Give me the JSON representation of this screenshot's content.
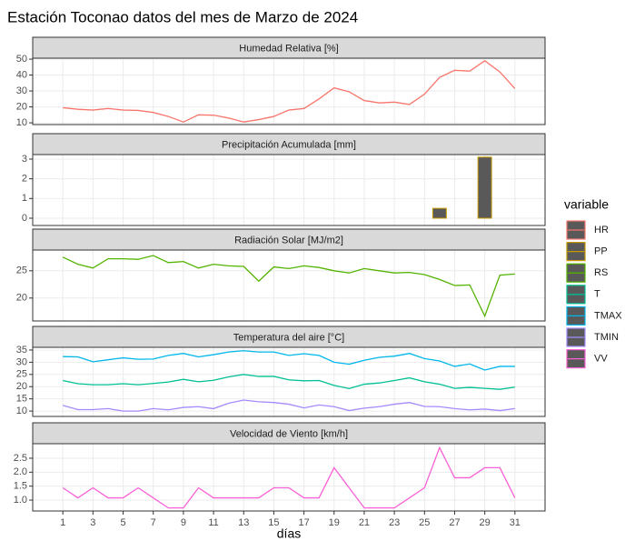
{
  "title": "Estación Toconao datos del mes de Marzo de 2024",
  "x_label": "días",
  "legend_title": "variable",
  "chart_data": [
    {
      "type": "line",
      "title": "Humedad Relativa [%]",
      "x": [
        1,
        2,
        3,
        4,
        5,
        6,
        7,
        8,
        9,
        10,
        11,
        12,
        13,
        14,
        15,
        16,
        17,
        18,
        19,
        20,
        21,
        22,
        23,
        24,
        25,
        26,
        27,
        28,
        29,
        30,
        31
      ],
      "xlim": [
        -1,
        33
      ],
      "xticks": [
        1,
        3,
        5,
        7,
        9,
        11,
        13,
        15,
        17,
        19,
        21,
        23,
        25,
        27,
        29,
        31
      ],
      "ylim": [
        8.9,
        50.6
      ],
      "yticks": [
        10,
        20,
        30,
        40,
        50
      ],
      "series": [
        {
          "name": "HR",
          "color": "#F8766D",
          "values": [
            19.5,
            18.5,
            18,
            19,
            18,
            17.8,
            16.5,
            14,
            10.5,
            15,
            14.8,
            13,
            10.5,
            12,
            14,
            18,
            19,
            25,
            32,
            29.5,
            24,
            22.5,
            23,
            21.5,
            28,
            38.5,
            43,
            42.5,
            49,
            42,
            31.5
          ]
        }
      ]
    },
    {
      "type": "bar",
      "title": "Precipitación Acumulada [mm]",
      "x": [
        1,
        2,
        3,
        4,
        5,
        6,
        7,
        8,
        9,
        10,
        11,
        12,
        13,
        14,
        15,
        16,
        17,
        18,
        19,
        20,
        21,
        22,
        23,
        24,
        25,
        26,
        27,
        28,
        29,
        30,
        31
      ],
      "xlim": [
        -1,
        33
      ],
      "xticks": [
        1,
        3,
        5,
        7,
        9,
        11,
        13,
        15,
        17,
        19,
        21,
        23,
        25,
        27,
        29,
        31
      ],
      "ylim": [
        -0.37,
        3.23
      ],
      "yticks": [
        0,
        1,
        2,
        3
      ],
      "series": [
        {
          "name": "PP",
          "color": "#C49A00",
          "values": [
            0,
            0,
            0,
            0,
            0,
            0,
            0,
            0,
            0,
            0,
            0,
            0,
            0,
            0,
            0,
            0,
            0,
            0,
            0,
            0,
            0,
            0,
            0,
            0,
            0,
            0.5,
            0,
            0,
            3.1,
            0,
            0
          ]
        }
      ]
    },
    {
      "type": "line",
      "title": "Radiación Solar [MJ/m2]",
      "x": [
        1,
        2,
        3,
        4,
        5,
        6,
        7,
        8,
        9,
        10,
        11,
        12,
        13,
        14,
        15,
        16,
        17,
        18,
        19,
        20,
        21,
        22,
        23,
        24,
        25,
        26,
        27,
        28,
        29,
        30,
        31
      ],
      "xlim": [
        -1,
        33
      ],
      "xticks": [
        1,
        3,
        5,
        7,
        9,
        11,
        13,
        15,
        17,
        19,
        21,
        23,
        25,
        27,
        29,
        31
      ],
      "ylim": [
        15.8,
        28.8
      ],
      "yticks": [
        20,
        25
      ],
      "series": [
        {
          "name": "RS",
          "color": "#53B400",
          "values": [
            27.5,
            26.2,
            25.5,
            27.2,
            27.2,
            27.1,
            27.8,
            26.5,
            26.7,
            25.5,
            26.2,
            25.9,
            25.8,
            23.1,
            25.7,
            25.4,
            25.9,
            25.6,
            25,
            24.6,
            25.4,
            25,
            24.6,
            24.7,
            24.3,
            23.4,
            22.3,
            22.4,
            16.7,
            24.2,
            24.4
          ]
        }
      ]
    },
    {
      "type": "line",
      "title": "Temperatura del aire [°C]",
      "x": [
        1,
        2,
        3,
        4,
        5,
        6,
        7,
        8,
        9,
        10,
        11,
        12,
        13,
        14,
        15,
        16,
        17,
        18,
        19,
        20,
        21,
        22,
        23,
        24,
        25,
        26,
        27,
        28,
        29,
        30,
        31
      ],
      "xlim": [
        -1,
        33
      ],
      "xticks": [
        1,
        3,
        5,
        7,
        9,
        11,
        13,
        15,
        17,
        19,
        21,
        23,
        25,
        27,
        29,
        31
      ],
      "ylim": [
        7.8,
        36.1
      ],
      "yticks": [
        10,
        15,
        20,
        25,
        30,
        35
      ],
      "series": [
        {
          "name": "T",
          "color": "#00C094",
          "values": [
            22.5,
            21.2,
            20.8,
            20.8,
            21.2,
            20.8,
            21.3,
            21.9,
            23,
            22,
            22.6,
            24,
            25,
            24.2,
            24.2,
            22.8,
            22.4,
            22.5,
            20.5,
            19.2,
            21,
            21.5,
            22.5,
            23.6,
            22,
            21,
            19.3,
            19.7,
            19.3,
            18.9,
            19.8
          ]
        },
        {
          "name": "TMAX",
          "color": "#00B6EB",
          "values": [
            32.3,
            32.2,
            30.2,
            31,
            31.8,
            31.2,
            31.3,
            32.8,
            33.6,
            32.2,
            33.1,
            34.2,
            34.7,
            34.2,
            34.2,
            32.8,
            33.5,
            32.8,
            30,
            29.2,
            30.8,
            32,
            32.5,
            33.6,
            31.5,
            30.5,
            28.3,
            29.3,
            26.8,
            28.3,
            28.3
          ]
        },
        {
          "name": "TMIN",
          "color": "#A58AFF",
          "values": [
            12.3,
            10.6,
            10.6,
            11,
            10,
            10,
            11,
            10.5,
            11.5,
            11.8,
            11,
            13.2,
            14.5,
            13.8,
            13.5,
            12.8,
            11.3,
            12.5,
            11.8,
            10.2,
            11.2,
            11.8,
            12.8,
            13.5,
            11.9,
            11.8,
            11,
            10.5,
            10.8,
            10.2,
            11
          ]
        }
      ]
    },
    {
      "type": "line",
      "title": "Velocidad de Viento [km/h]",
      "x": [
        1,
        2,
        3,
        4,
        5,
        6,
        7,
        8,
        9,
        10,
        11,
        12,
        13,
        14,
        15,
        16,
        17,
        18,
        19,
        20,
        21,
        22,
        23,
        24,
        25,
        26,
        27,
        28,
        29,
        30,
        31
      ],
      "xlim": [
        -1,
        33
      ],
      "xticks": [
        1,
        3,
        5,
        7,
        9,
        11,
        13,
        15,
        17,
        19,
        21,
        23,
        25,
        27,
        29,
        31
      ],
      "ylim": [
        0.61,
        3.02
      ],
      "yticks": [
        {
          "value": 1,
          "label": "1.0"
        },
        1.5,
        {
          "value": 2,
          "label": "2.0"
        },
        2.5
      ],
      "series": [
        {
          "name": "VV",
          "color": "#FB61D7",
          "values": [
            1.44,
            1.08,
            1.44,
            1.08,
            1.08,
            1.44,
            1.08,
            0.72,
            0.72,
            1.44,
            1.08,
            1.08,
            1.08,
            1.08,
            1.44,
            1.44,
            1.08,
            1.08,
            2.16,
            1.44,
            0.72,
            0.72,
            0.72,
            1.08,
            1.44,
            2.88,
            1.8,
            1.8,
            2.16,
            2.16,
            1.08
          ]
        }
      ]
    }
  ]
}
